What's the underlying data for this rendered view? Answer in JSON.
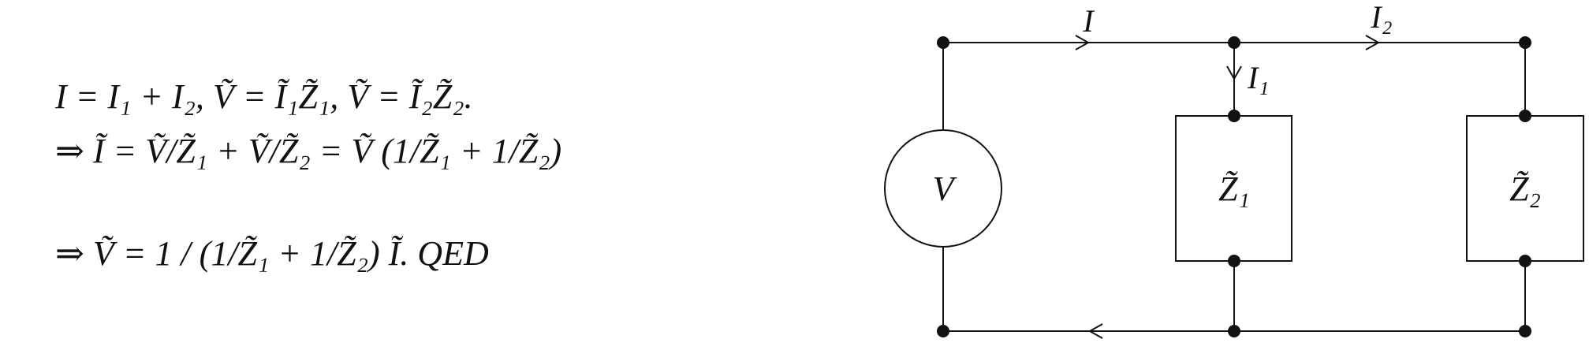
{
  "equations": {
    "line1": "I = I₁ + I₂,  Ṽ = Ĩ₁Z̃₁,  Ṽ = Ĩ₂Z̃₂.",
    "line2": "⇒ Ĩ = Ṽ/Z̃₁ + Ṽ/Z̃₂ = Ṽ (1/Z̃₁ + 1/Z̃₂)",
    "line3": "⇒ Ṽ = 1 / (1/Z̃₁ + 1/Z̃₂) Ĩ.   QED"
  },
  "circuit": {
    "source_label": "V",
    "current_total_label": "I",
    "current_branch1_label": "I₁",
    "current_branch2_label": "I₂",
    "impedance1_label": "Z̃₁",
    "impedance2_label": "Z̃₂"
  }
}
